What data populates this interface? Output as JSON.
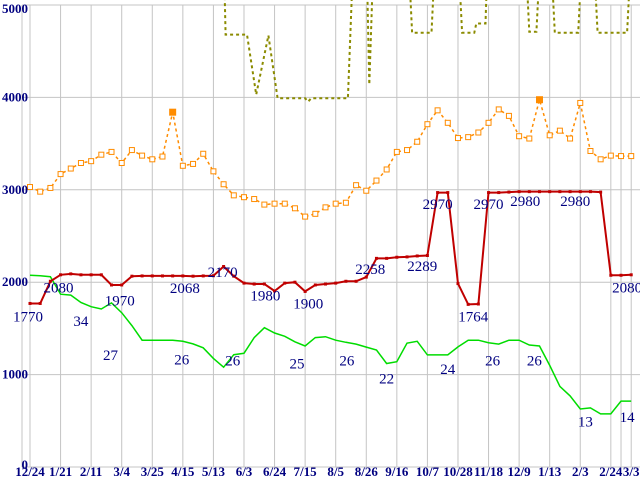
{
  "colors": {
    "background": "#ffffff",
    "grid": "#c4c4c4",
    "axis_text": "#000080",
    "olive": "#8b8b00",
    "orange": "#ff8c00",
    "red": "#c00000",
    "green": "#00dc00"
  },
  "chart_data": {
    "type": "line",
    "title": "",
    "xlabel": "",
    "ylabel": "",
    "ylim": [
      0,
      5000
    ],
    "grid": true,
    "legend": "none",
    "y_ticks": [
      {
        "label": "5000",
        "v": 5000
      },
      {
        "label": "4000",
        "v": 4000
      },
      {
        "label": "3000",
        "v": 3000
      },
      {
        "label": "2000",
        "v": 2000
      },
      {
        "label": "1000",
        "v": 1000
      },
      {
        "label": "0",
        "v": 0
      }
    ],
    "x_ticks": [
      {
        "label": "12/24",
        "i": 0
      },
      {
        "label": "1/21",
        "i": 3
      },
      {
        "label": "2/11",
        "i": 6
      },
      {
        "label": "3/4",
        "i": 9
      },
      {
        "label": "3/25",
        "i": 12
      },
      {
        "label": "4/15",
        "i": 15
      },
      {
        "label": "5/13",
        "i": 18
      },
      {
        "label": "6/3",
        "i": 21
      },
      {
        "label": "6/24",
        "i": 24
      },
      {
        "label": "7/15",
        "i": 27
      },
      {
        "label": "8/5",
        "i": 30
      },
      {
        "label": "8/26",
        "i": 33
      },
      {
        "label": "9/16",
        "i": 36
      },
      {
        "label": "10/7",
        "i": 39
      },
      {
        "label": "10/28",
        "i": 42
      },
      {
        "label": "11/18",
        "i": 45
      },
      {
        "label": "12/9",
        "i": 48
      },
      {
        "label": "1/13",
        "i": 51
      },
      {
        "label": "2/3",
        "i": 54
      },
      {
        "label": "2/24",
        "i": 57
      },
      {
        "label": "3/3",
        "i": 59
      }
    ],
    "extra_gridline_indices": [
      58
    ],
    "series": [
      {
        "name": "olive-dashed-line",
        "color_key": "olive",
        "style": "dashed",
        "line_width": 2,
        "markers": "none",
        "points": [
          [
            19.1,
            5150
          ],
          [
            19.2,
            4680
          ],
          [
            21.3,
            4680
          ],
          [
            22.2,
            4030
          ],
          [
            23.4,
            4670
          ],
          [
            24.3,
            3990
          ],
          [
            27.0,
            3990
          ],
          [
            27.3,
            3955
          ],
          [
            27.6,
            3990
          ],
          [
            31.2,
            3990
          ],
          [
            31.6,
            5150
          ],
          [
            33.1,
            5150
          ],
          [
            33.3,
            4140
          ],
          [
            33.6,
            5150
          ],
          [
            37.3,
            5150
          ],
          [
            37.5,
            4700
          ],
          [
            39.4,
            4700
          ],
          [
            39.6,
            5150
          ],
          [
            42.2,
            5150
          ],
          [
            42.4,
            4700
          ],
          [
            43.6,
            4700
          ],
          [
            43.8,
            4800
          ],
          [
            44.7,
            4800
          ],
          [
            44.8,
            5150
          ],
          [
            48.8,
            5150
          ],
          [
            49.0,
            4710
          ],
          [
            49.7,
            4710
          ],
          [
            49.9,
            5150
          ],
          [
            51.3,
            5150
          ],
          [
            51.5,
            4700
          ],
          [
            53.8,
            4700
          ],
          [
            54.0,
            5150
          ],
          [
            55.5,
            5150
          ],
          [
            55.7,
            4700
          ],
          [
            58.6,
            4700
          ],
          [
            58.8,
            5150
          ]
        ],
        "labels": []
      },
      {
        "name": "orange-dashed-line",
        "color_key": "orange",
        "style": "dashed",
        "line_width": 1.5,
        "markers": "open-square",
        "filled_marker_indices": [
          14,
          50
        ],
        "values": [
          3030,
          2980,
          3020,
          3170,
          3230,
          3290,
          3310,
          3380,
          3410,
          3290,
          3430,
          3370,
          3330,
          3360,
          3840,
          3260,
          3280,
          3390,
          3200,
          3060,
          2940,
          2920,
          2900,
          2840,
          2850,
          2850,
          2800,
          2710,
          2740,
          2810,
          2850,
          2860,
          3050,
          2990,
          3100,
          3220,
          3410,
          3430,
          3520,
          3710,
          3860,
          3725,
          3560,
          3570,
          3620,
          3725,
          3870,
          3800,
          3580,
          3555,
          3975,
          3590,
          3640,
          3555,
          3940,
          3420,
          3330,
          3370,
          3365,
          3365
        ],
        "labels": []
      },
      {
        "name": "green-line",
        "color_key": "green",
        "style": "solid",
        "line_width": 1.5,
        "markers": "none",
        "values": [
          2075,
          2070,
          2060,
          1870,
          1860,
          1780,
          1735,
          1710,
          1776,
          1670,
          1530,
          1372,
          1372,
          1372,
          1372,
          1360,
          1332,
          1290,
          1175,
          1080,
          1215,
          1230,
          1400,
          1508,
          1450,
          1415,
          1355,
          1310,
          1400,
          1410,
          1372,
          1350,
          1330,
          1298,
          1266,
          1120,
          1140,
          1340,
          1360,
          1213,
          1213,
          1213,
          1300,
          1372,
          1372,
          1345,
          1330,
          1372,
          1372,
          1320,
          1310,
          1100,
          872,
          770,
          628,
          640,
          575,
          575,
          713,
          713
        ],
        "labels": [
          {
            "text": "34",
            "xi": 5.0,
            "yv": 1580
          },
          {
            "text": "27",
            "xi": 7.9,
            "yv": 1210
          },
          {
            "text": "26",
            "xi": 14.9,
            "yv": 1165
          },
          {
            "text": "26",
            "xi": 19.9,
            "yv": 1155
          },
          {
            "text": "25",
            "xi": 26.2,
            "yv": 1120
          },
          {
            "text": "26",
            "xi": 31.1,
            "yv": 1155
          },
          {
            "text": "22",
            "xi": 35.0,
            "yv": 960
          },
          {
            "text": "24",
            "xi": 41.0,
            "yv": 1060
          },
          {
            "text": "26",
            "xi": 45.4,
            "yv": 1155
          },
          {
            "text": "26",
            "xi": 49.5,
            "yv": 1155
          },
          {
            "text": "13",
            "xi": 54.5,
            "yv": 495
          },
          {
            "text": "14",
            "xi": 58.6,
            "yv": 540
          }
        ]
      },
      {
        "name": "red-line",
        "color_key": "red",
        "style": "solid",
        "line_width": 2,
        "markers": "filled-square",
        "values": [
          1770,
          1770,
          2010,
          2080,
          2090,
          2080,
          2080,
          2080,
          1970,
          1970,
          2065,
          2068,
          2068,
          2068,
          2068,
          2068,
          2065,
          2068,
          2070,
          2170,
          2065,
          1990,
          1980,
          1980,
          1905,
          1990,
          2000,
          1900,
          1970,
          1980,
          1990,
          2010,
          2010,
          2055,
          2258,
          2258,
          2270,
          2274,
          2284,
          2289,
          2970,
          2970,
          1985,
          1760,
          1764,
          2970,
          2970,
          2975,
          2980,
          2980,
          2980,
          2980,
          2980,
          2980,
          2980,
          2980,
          2975,
          2075,
          2075,
          2080
        ],
        "labels": [
          {
            "text": "1770",
            "xi": -0.2,
            "yv": 1630
          },
          {
            "text": "2080",
            "xi": 2.8,
            "yv": 1940
          },
          {
            "text": "1970",
            "xi": 8.8,
            "yv": 1800
          },
          {
            "text": "2068",
            "xi": 15.2,
            "yv": 1935
          },
          {
            "text": "2170",
            "xi": 18.9,
            "yv": 2110
          },
          {
            "text": "1980",
            "xi": 23.1,
            "yv": 1855
          },
          {
            "text": "1900",
            "xi": 27.3,
            "yv": 1770
          },
          {
            "text": "2258",
            "xi": 33.4,
            "yv": 2145
          },
          {
            "text": "2289",
            "xi": 38.5,
            "yv": 2175
          },
          {
            "text": "2970",
            "xi": 40.0,
            "yv": 2845
          },
          {
            "text": "1764",
            "xi": 43.5,
            "yv": 1630
          },
          {
            "text": "2970",
            "xi": 45.0,
            "yv": 2845
          },
          {
            "text": "2980",
            "xi": 48.6,
            "yv": 2880
          },
          {
            "text": "2980",
            "xi": 53.5,
            "yv": 2880
          },
          {
            "text": "2080",
            "xi": 58.6,
            "yv": 1945
          }
        ]
      }
    ]
  }
}
